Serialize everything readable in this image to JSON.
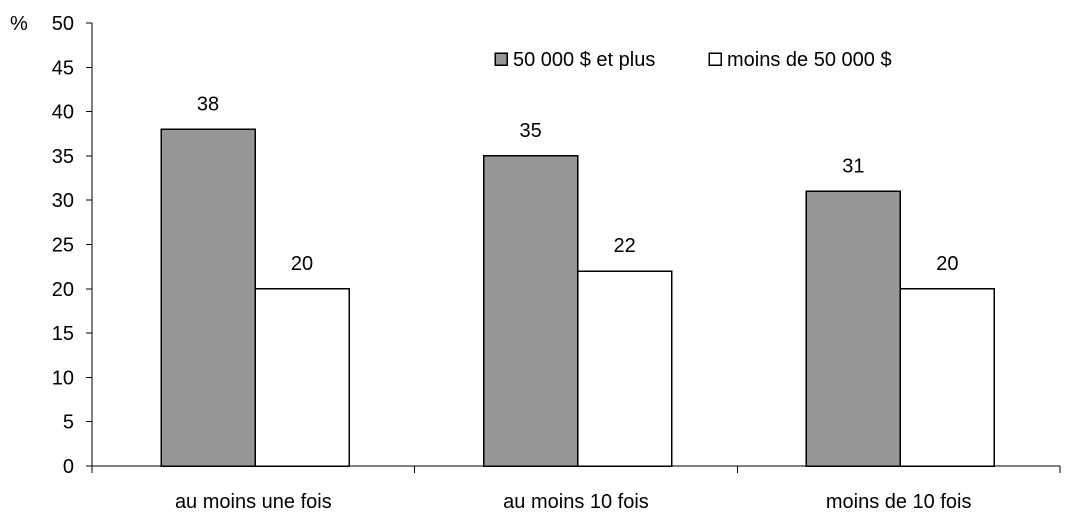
{
  "chart_data": {
    "type": "bar",
    "y_unit_label": "%",
    "categories": [
      "au moins une fois",
      "au moins 10 fois",
      "moins de 10 fois"
    ],
    "series": [
      {
        "name": "50 000 $ et plus",
        "values": [
          38,
          35,
          31
        ],
        "color": "#969696"
      },
      {
        "name": "moins de 50 000 $",
        "values": [
          20,
          22,
          20
        ],
        "color": "#ffffff"
      }
    ],
    "ylim": [
      0,
      50
    ],
    "ytick_step": 5,
    "yticks": [
      "0",
      "5",
      "10",
      "15",
      "20",
      "25",
      "30",
      "35",
      "40",
      "45",
      "50"
    ],
    "grid": false,
    "legend_position": "top-right",
    "title": "",
    "xlabel": "",
    "ylabel": ""
  }
}
